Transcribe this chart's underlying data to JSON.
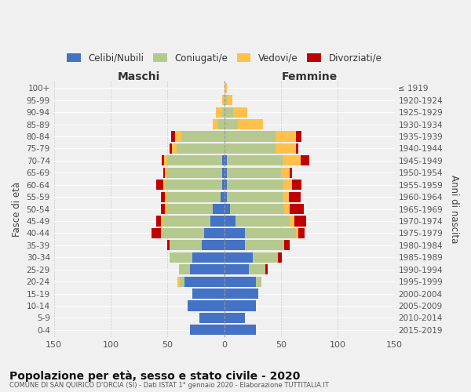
{
  "age_groups": [
    "0-4",
    "5-9",
    "10-14",
    "15-19",
    "20-24",
    "25-29",
    "30-34",
    "35-39",
    "40-44",
    "45-49",
    "50-54",
    "55-59",
    "60-64",
    "65-69",
    "70-74",
    "75-79",
    "80-84",
    "85-89",
    "90-94",
    "95-99",
    "100+"
  ],
  "birth_years": [
    "2015-2019",
    "2010-2014",
    "2005-2009",
    "2000-2004",
    "1995-1999",
    "1990-1994",
    "1985-1989",
    "1980-1984",
    "1975-1979",
    "1970-1974",
    "1965-1969",
    "1960-1964",
    "1955-1959",
    "1950-1954",
    "1945-1949",
    "1940-1944",
    "1935-1939",
    "1930-1934",
    "1925-1929",
    "1920-1924",
    "≤ 1919"
  ],
  "colors": {
    "celibi": "#4472c4",
    "coniugati": "#b5c98e",
    "vedovi": "#ffc04c",
    "divorziati": "#c00000"
  },
  "males": {
    "celibi": [
      30,
      22,
      32,
      28,
      35,
      30,
      28,
      20,
      18,
      12,
      10,
      3,
      2,
      2,
      2,
      0,
      0,
      0,
      0,
      0,
      0
    ],
    "coniugati": [
      0,
      0,
      0,
      0,
      4,
      10,
      20,
      28,
      38,
      42,
      40,
      47,
      50,
      48,
      48,
      42,
      38,
      5,
      2,
      0,
      0
    ],
    "vedovi": [
      0,
      0,
      0,
      0,
      2,
      0,
      0,
      0,
      0,
      2,
      2,
      2,
      2,
      2,
      3,
      4,
      5,
      5,
      5,
      2,
      0
    ],
    "divorziati": [
      0,
      0,
      0,
      0,
      0,
      0,
      0,
      2,
      8,
      4,
      4,
      4,
      6,
      2,
      2,
      2,
      4,
      0,
      0,
      0,
      0
    ]
  },
  "females": {
    "celibi": [
      28,
      18,
      28,
      30,
      28,
      22,
      25,
      18,
      18,
      10,
      5,
      2,
      2,
      2,
      2,
      0,
      0,
      0,
      0,
      0,
      0
    ],
    "coniugati": [
      0,
      0,
      0,
      0,
      5,
      14,
      22,
      35,
      45,
      48,
      48,
      50,
      50,
      48,
      50,
      45,
      45,
      12,
      8,
      2,
      0
    ],
    "vedovi": [
      0,
      0,
      0,
      0,
      0,
      0,
      0,
      0,
      2,
      4,
      5,
      5,
      8,
      8,
      15,
      18,
      18,
      22,
      12,
      5,
      2
    ],
    "divorziati": [
      0,
      0,
      0,
      0,
      0,
      2,
      4,
      5,
      6,
      10,
      12,
      10,
      8,
      2,
      8,
      2,
      5,
      0,
      0,
      0,
      0
    ]
  },
  "title": "Popolazione per età, sesso e stato civile - 2020",
  "subtitle": "COMUNE DI SAN QUIRICO D'ORCIA (SI) - Dati ISTAT 1° gennaio 2020 - Elaborazione TUTTITALIA.IT",
  "xlabel_left": "Maschi",
  "xlabel_right": "Femmine",
  "ylabel_left": "Fasce di età",
  "ylabel_right": "Anni di nascita",
  "xlim": 150,
  "legend_labels": [
    "Celibi/Nubili",
    "Coniugati/e",
    "Vedovi/e",
    "Divorziati/e"
  ],
  "background_color": "#f0f0f0"
}
